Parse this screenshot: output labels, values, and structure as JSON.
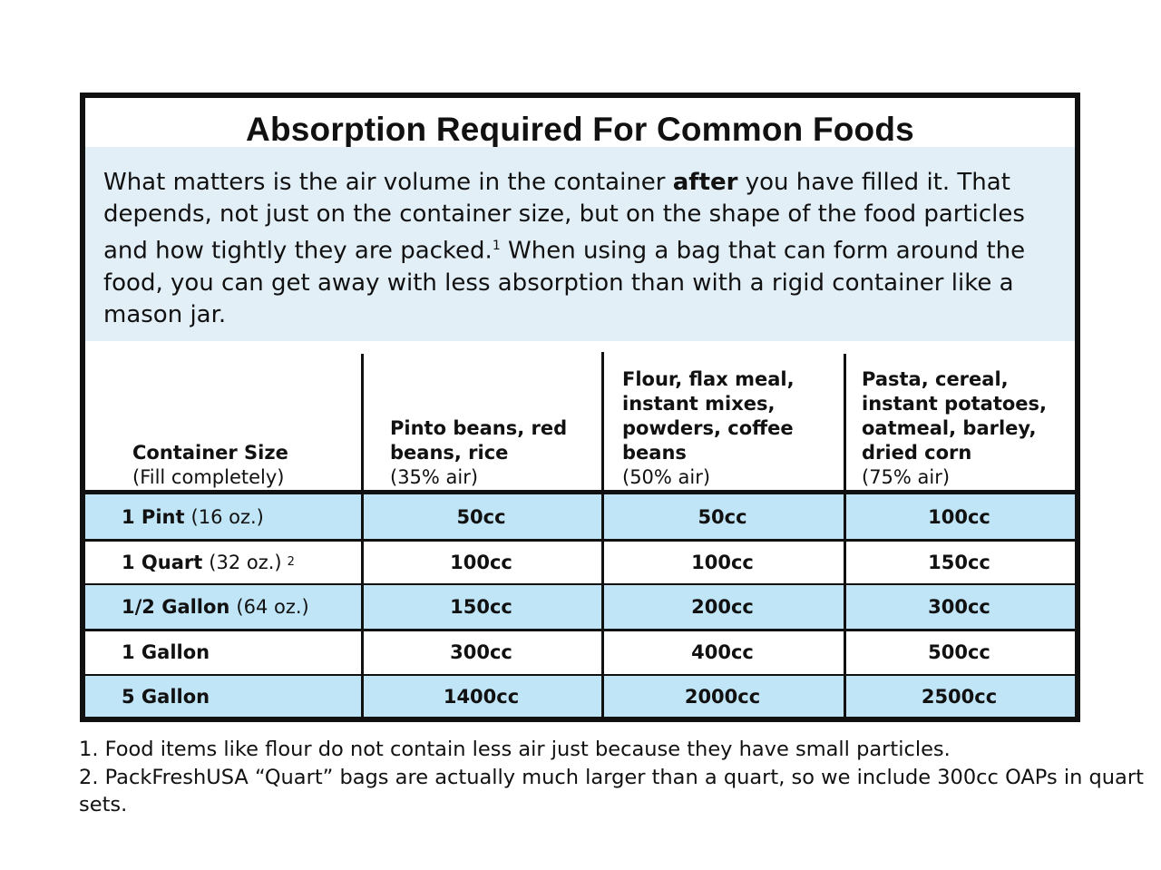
{
  "title": "Absorption Required For Common Foods",
  "intro": {
    "before_bold": "What matters is the air volume in the container ",
    "bold": "after",
    "after_bold": " you have filled it. That depends, not just on the container size, but on the shape of the food particles and how tightly they are packed.",
    "footnote_ref": "1",
    "rest": " When using a bag that can form around the food, you can get away with less absorption than with a rigid container like a mason jar."
  },
  "headers": [
    {
      "label": "Container Size",
      "sub": "(Fill completely)"
    },
    {
      "label": "Pinto beans, red beans, rice",
      "sub": "(35% air)"
    },
    {
      "label": "Flour, flax meal, instant mixes, powders, coffee beans",
      "sub": "(50% air)"
    },
    {
      "label": "Pasta, cereal, instant potatoes, oatmeal, barley, dried corn",
      "sub": "(75% air)"
    }
  ],
  "rows": [
    {
      "size": "1 Pint",
      "detail": "(16 oz.)",
      "note": "",
      "values": [
        "50cc",
        "50cc",
        "100cc"
      ]
    },
    {
      "size": "1 Quart",
      "detail": "(32 oz.)",
      "note": "2",
      "values": [
        "100cc",
        "100cc",
        "150cc"
      ]
    },
    {
      "size": "1/2 Gallon",
      "detail": "(64 oz.)",
      "note": "",
      "values": [
        "150cc",
        "200cc",
        "300cc"
      ]
    },
    {
      "size": "1 Gallon",
      "detail": "",
      "note": "",
      "values": [
        "300cc",
        "400cc",
        "500cc"
      ]
    },
    {
      "size": "5 Gallon",
      "detail": "",
      "note": "",
      "values": [
        "1400cc",
        "2000cc",
        "2500cc"
      ]
    }
  ],
  "footnotes": [
    "1. Food items like flour do not contain less air just because they have small particles.",
    "2. PackFreshUSA “Quart” bags are actually much larger than a quart, so we include 300cc OAPs in quart sets."
  ],
  "colors": {
    "row_highlight": "#bfe5f7",
    "intro_bg": "#e2eff7",
    "border": "#111111"
  }
}
